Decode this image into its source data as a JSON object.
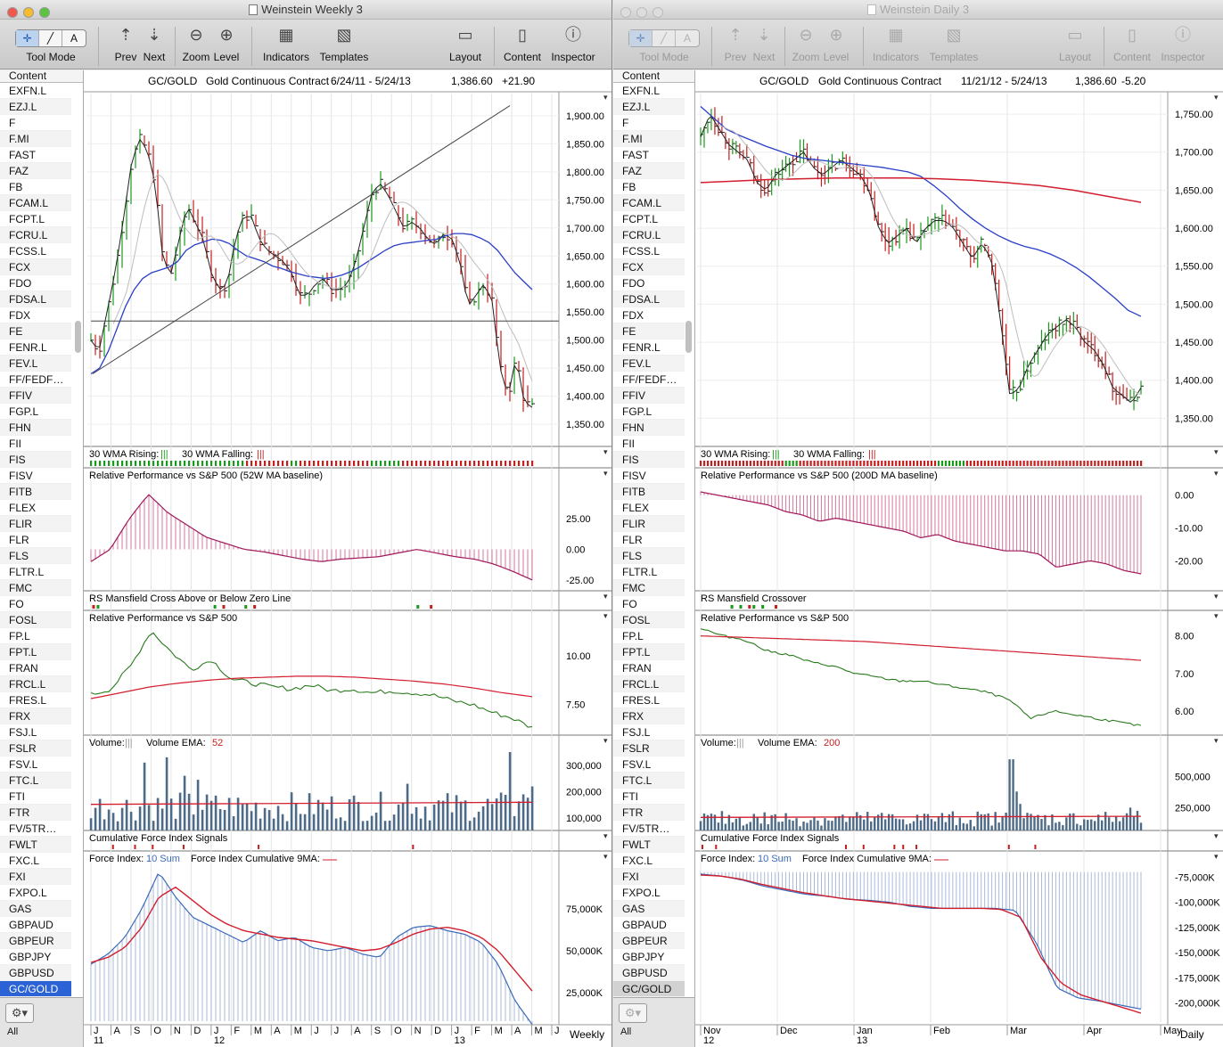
{
  "windows": [
    {
      "title": "Weinstein Weekly 3",
      "toolbar": {
        "tool_mode": "Tool Mode",
        "prev": "Prev",
        "next": "Next",
        "zoom": "Zoom",
        "level": "Level",
        "indicators": "Indicators",
        "templates": "Templates",
        "layout": "Layout",
        "content": "Content",
        "inspector": "Inspector",
        "tool_buttons": [
          "✛",
          "╱",
          "A"
        ]
      },
      "sidebar": {
        "header": "Content",
        "items": [
          "EXFN.L",
          "EZJ.L",
          "F",
          "F.MI",
          "FAST",
          "FAZ",
          "FB",
          "FCAM.L",
          "FCPT.L",
          "FCRU.L",
          "FCSS.L",
          "FCX",
          "FDO",
          "FDSA.L",
          "FDX",
          "FE",
          "FENR.L",
          "FEV.L",
          "FF/FEDF…",
          "FFIV",
          "FGP.L",
          "FHN",
          "FII",
          "FIS",
          "FISV",
          "FITB",
          "FLEX",
          "FLIR",
          "FLR",
          "FLS",
          "FLTR.L",
          "FMC",
          "FO",
          "FOSL",
          "FP.L",
          "FPT.L",
          "FRAN",
          "FRCL.L",
          "FRES.L",
          "FRX",
          "FSJ.L",
          "FSLR",
          "FSV.L",
          "FTC.L",
          "FTI",
          "FTR",
          "FV/5TR…",
          "FWLT",
          "FXC.L",
          "FXI",
          "FXPO.L",
          "GAS",
          "GBPAUD",
          "GBPEUR",
          "GBPJPY",
          "GBPUSD",
          "GC/GOLD"
        ],
        "selected": "GC/GOLD",
        "footer_label": "All"
      },
      "header": {
        "symbol": "GC/GOLD",
        "name": "Gold Continuous Contract",
        "range": "6/24/11 - 5/24/13",
        "last": "1,386.60",
        "change": "+21.90"
      },
      "panes": {
        "price": {
          "ticks": [
            "1,900.00",
            "1,850.00",
            "1,800.00",
            "1,750.00",
            "1,700.00",
            "1,650.00",
            "1,600.00",
            "1,550.00",
            "1,500.00",
            "1,450.00",
            "1,400.00",
            "1,350.00"
          ]
        },
        "wma": {
          "label_a": "30 WMA Rising:",
          "label_b": "30 WMA Falling:"
        },
        "rp": {
          "title": "Relative Performance vs S&P 500 (52W MA baseline)",
          "ticks": [
            "25.00",
            "0.00",
            "-25.00"
          ]
        },
        "rs": {
          "title": "RS Mansfield Cross Above or Below Zero Line"
        },
        "rp2": {
          "title": "Relative Performance vs S&P 500",
          "ticks": [
            "10.00",
            "7.50"
          ]
        },
        "vol": {
          "label": "Volume:",
          "ema_label": "Volume EMA:",
          "ema_value": "52",
          "ticks": [
            "300,000",
            "200,000",
            "100,000"
          ]
        },
        "cfi": {
          "title": "Cumulative Force Index Signals"
        },
        "fi": {
          "label": "Force Index:",
          "sum": "10 Sum",
          "cum_label": "Force Index Cumulative 9MA:",
          "ticks": [
            "75,000K",
            "50,000K",
            "25,000K"
          ]
        }
      },
      "xaxis": {
        "months": [
          "J",
          "A",
          "S",
          "O",
          "N",
          "D",
          "J",
          "F",
          "M",
          "A",
          "M",
          "J",
          "J",
          "A",
          "S",
          "O",
          "N",
          "D",
          "J",
          "F",
          "M",
          "A",
          "M",
          "J"
        ],
        "years": [
          "11",
          "12",
          "13"
        ],
        "period": "Weekly"
      }
    },
    {
      "title": "Weinstein Daily 3",
      "toolbar": {
        "tool_mode": "Tool Mode",
        "prev": "Prev",
        "next": "Next",
        "zoom": "Zoom",
        "level": "Level",
        "indicators": "Indicators",
        "templates": "Templates",
        "layout": "Layout",
        "content": "Content",
        "inspector": "Inspector",
        "tool_buttons": [
          "✛",
          "╱",
          "A"
        ]
      },
      "sidebar": {
        "header": "Content",
        "items": [
          "EXFN.L",
          "EZJ.L",
          "F",
          "F.MI",
          "FAST",
          "FAZ",
          "FB",
          "FCAM.L",
          "FCPT.L",
          "FCRU.L",
          "FCSS.L",
          "FCX",
          "FDO",
          "FDSA.L",
          "FDX",
          "FE",
          "FENR.L",
          "FEV.L",
          "FF/FEDF…",
          "FFIV",
          "FGP.L",
          "FHN",
          "FII",
          "FIS",
          "FISV",
          "FITB",
          "FLEX",
          "FLIR",
          "FLR",
          "FLS",
          "FLTR.L",
          "FMC",
          "FO",
          "FOSL",
          "FP.L",
          "FPT.L",
          "FRAN",
          "FRCL.L",
          "FRES.L",
          "FRX",
          "FSJ.L",
          "FSLR",
          "FSV.L",
          "FTC.L",
          "FTI",
          "FTR",
          "FV/5TR…",
          "FWLT",
          "FXC.L",
          "FXI",
          "FXPO.L",
          "GAS",
          "GBPAUD",
          "GBPEUR",
          "GBPJPY",
          "GBPUSD",
          "GC/GOLD"
        ],
        "selected": "GC/GOLD",
        "footer_label": "All"
      },
      "header": {
        "symbol": "GC/GOLD",
        "name": "Gold Continuous Contract",
        "range": "11/21/12 - 5/24/13",
        "last": "1,386.60",
        "change": "-5.20"
      },
      "panes": {
        "price": {
          "ticks": [
            "1,750.00",
            "1,700.00",
            "1,650.00",
            "1,600.00",
            "1,550.00",
            "1,500.00",
            "1,450.00",
            "1,400.00",
            "1,350.00"
          ]
        },
        "wma": {
          "label_a": "30 WMA Rising:",
          "label_b": "30 WMA Falling:"
        },
        "rp": {
          "title": "Relative Performance vs S&P 500 (200D MA baseline)",
          "ticks": [
            "0.00",
            "-10.00",
            "-20.00"
          ]
        },
        "rs": {
          "title": "RS Mansfield Crossover"
        },
        "rp2": {
          "title": "Relative Performance vs S&P 500",
          "ticks": [
            "8.00",
            "7.00",
            "6.00"
          ]
        },
        "vol": {
          "label": "Volume:",
          "ema_label": "Volume EMA:",
          "ema_value": "200",
          "ticks": [
            "500,000",
            "250,000"
          ]
        },
        "cfi": {
          "title": "Cumulative Force Index Signals"
        },
        "fi": {
          "label": "Force Index:",
          "sum": "10 Sum",
          "cum_label": "Force Index Cumulative 9MA:",
          "ticks": [
            "-75,000K",
            "-100,000K",
            "-125,000K",
            "-150,000K",
            "-175,000K",
            "-200,000K"
          ]
        }
      },
      "xaxis": {
        "months": [
          "Nov",
          "Dec",
          "Jan",
          "Feb",
          "Mar",
          "Apr",
          "May"
        ],
        "years": [
          "12",
          "13"
        ],
        "period": "Daily"
      }
    }
  ],
  "colors": {
    "up_bar": "#1a9a1a",
    "down_bar": "#c41e1e",
    "ma_blue": "#2a3fc8",
    "ma_red": "#d21e2e",
    "ma_gray": "#bdbdbd",
    "rp_magenta": "#a0185a",
    "rp_green": "#2a7a1e",
    "volume_bar": "#4d6a86",
    "force_blue": "#3a6ab8"
  },
  "chart_data": [
    {
      "type": "line",
      "title": "GC/GOLD Gold Continuous Contract 6/24/11 - 5/24/13",
      "xlabel": "",
      "ylabel": "",
      "ylim": [
        1320,
        1930
      ],
      "series": [
        {
          "values": [
            1500,
            1480,
            1550,
            1620,
            1710,
            1810,
            1860,
            1840,
            1780,
            1640,
            1620,
            1680,
            1740,
            1710,
            1680,
            1620,
            1590,
            1600,
            1680,
            1720,
            1720,
            1680,
            1660,
            1650,
            1640,
            1620,
            1580,
            1580,
            1600,
            1610,
            1590,
            1590,
            1600,
            1640,
            1700,
            1760,
            1780,
            1760,
            1730,
            1700,
            1710,
            1700,
            1680,
            1670,
            1690,
            1680,
            1640,
            1560,
            1580,
            1600,
            1570,
            1450,
            1400,
            1470,
            1390,
            1380
          ]
        },
        {
          "values": [
            1440,
            1450,
            1480,
            1520,
            1560,
            1590,
            1610,
            1620,
            1625,
            1630,
            1640,
            1660,
            1670,
            1675,
            1680,
            1678,
            1672,
            1660,
            1650,
            1645,
            1640,
            1632,
            1628,
            1622,
            1618,
            1614,
            1612,
            1610,
            1612,
            1616,
            1622,
            1630,
            1640,
            1650,
            1660,
            1668,
            1672,
            1674,
            1676,
            1678,
            1680,
            1686,
            1690,
            1690,
            1688,
            1682,
            1674,
            1660,
            1640,
            1620,
            1605,
            1590
          ]
        }
      ]
    },
    {
      "type": "line",
      "title": "GC/GOLD Gold Continuous Contract 11/21/12 - 5/24/13",
      "xlabel": "",
      "ylabel": "",
      "ylim": [
        1320,
        1770
      ],
      "series": [
        {
          "values": [
            1720,
            1750,
            1730,
            1710,
            1700,
            1690,
            1660,
            1650,
            1670,
            1680,
            1690,
            1700,
            1680,
            1670,
            1680,
            1690,
            1680,
            1670,
            1650,
            1600,
            1580,
            1590,
            1600,
            1580,
            1600,
            1610,
            1610,
            1600,
            1580,
            1560,
            1580,
            1560,
            1480,
            1380,
            1390,
            1420,
            1440,
            1460,
            1470,
            1480,
            1470,
            1450,
            1440,
            1420,
            1390,
            1380,
            1370,
            1390
          ]
        },
        {
          "values": [
            1760,
            1745,
            1730,
            1722,
            1715,
            1708,
            1702,
            1696,
            1692,
            1690,
            1688,
            1686,
            1684,
            1682,
            1680,
            1677,
            1674,
            1668,
            1656,
            1642,
            1626,
            1612,
            1600,
            1590,
            1582,
            1576,
            1572,
            1566,
            1558,
            1548,
            1536,
            1522,
            1508,
            1492,
            1484
          ]
        },
        {
          "values": [
            1660,
            1662,
            1664,
            1665,
            1666,
            1666,
            1666,
            1665,
            1663,
            1660,
            1656,
            1650,
            1642,
            1634
          ]
        }
      ]
    }
  ]
}
